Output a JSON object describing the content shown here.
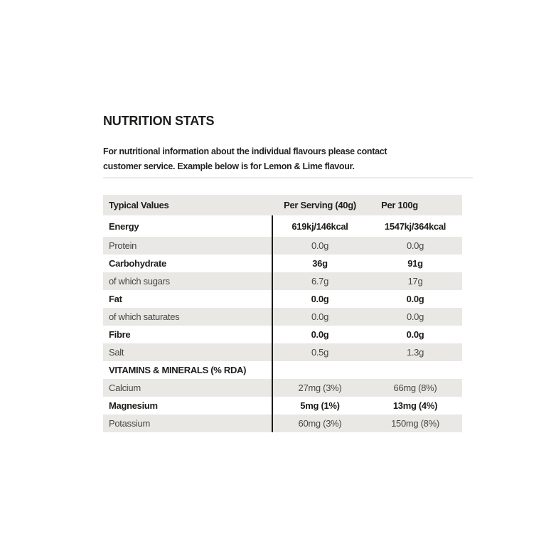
{
  "page": {
    "title": "NUTRITION STATS",
    "intro_line1": "For nutritional information about the individual flavours please contact",
    "intro_line2": "customer service. Example below is for Lemon & Lime flavour.",
    "flavour_example": "Lemon & Lime"
  },
  "colors": {
    "background": "#ffffff",
    "row_shade": "#e9e8e5",
    "text_dark": "#1d1d1b",
    "text_regular": "#474745",
    "column_divider": "#1a1a18",
    "section_divider": "#eceae8"
  },
  "table": {
    "headers": {
      "col1": "Typical Values",
      "col2": "Per Serving (40g)",
      "col3": "Per 100g"
    },
    "rows": [
      {
        "label": "Energy",
        "per_serving": "619kj/146kcal",
        "per_100g": "1547kj/364kcal"
      },
      {
        "label": "Protein",
        "per_serving": "0.0g",
        "per_100g": "0.0g"
      },
      {
        "label": "Carbohydrate",
        "per_serving": "36g",
        "per_100g": "91g"
      },
      {
        "label": "of which sugars",
        "per_serving": "6.7g",
        "per_100g": "17g"
      },
      {
        "label": "Fat",
        "per_serving": "0.0g",
        "per_100g": "0.0g"
      },
      {
        "label": "of which saturates",
        "per_serving": "0.0g",
        "per_100g": "0.0g"
      },
      {
        "label": "Fibre",
        "per_serving": "0.0g",
        "per_100g": "0.0g"
      },
      {
        "label": "Salt",
        "per_serving": "0.5g",
        "per_100g": "1.3g"
      },
      {
        "label": "VITAMINS & MINERALS (% RDA)",
        "per_serving": "",
        "per_100g": ""
      },
      {
        "label": "Calcium",
        "per_serving": "27mg (3%)",
        "per_100g": "66mg (8%)"
      },
      {
        "label": "Magnesium",
        "per_serving": "5mg (1%)",
        "per_100g": "13mg (4%)"
      },
      {
        "label": "Potassium",
        "per_serving": "60mg (3%)",
        "per_100g": "150mg (8%)"
      }
    ]
  }
}
